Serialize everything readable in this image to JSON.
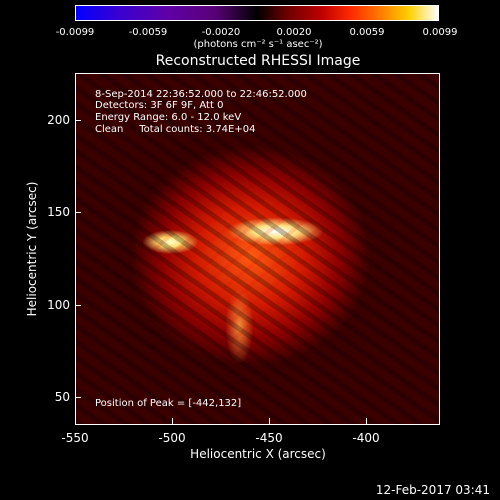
{
  "colorbar": {
    "tick_labels": [
      "-0.0099",
      "-0.0059",
      "-0.0020",
      "0.0020",
      "0.0059",
      "0.0099"
    ],
    "units": "(photons cm⁻² s⁻¹ asec⁻²)"
  },
  "title": "Reconstructed RHESSI Image",
  "info": {
    "time": "8-Sep-2014 22:36:52.000 to 22:46:52.000",
    "detectors": "Detectors: 3F 6F 9F, Att 0",
    "energy": "Energy Range: 6.0 - 12.0 keV",
    "clean": "Clean     Total counts: 3.74E+04"
  },
  "peak": "Position of Peak = [-442,132]",
  "axes": {
    "xlabel": "Heliocentric X (arcsec)",
    "ylabel": "Heliocentric Y (arcsec)",
    "x_ticks": [
      "-550",
      "-500",
      "-450",
      "-400"
    ],
    "y_ticks": [
      "200",
      "150",
      "100",
      "50"
    ]
  },
  "timestamp": "12-Feb-2017 03:41",
  "colors": {
    "background": "#000000",
    "text": "#ffffff",
    "flare_core": "#ffffff",
    "emission": "#d21a00"
  }
}
